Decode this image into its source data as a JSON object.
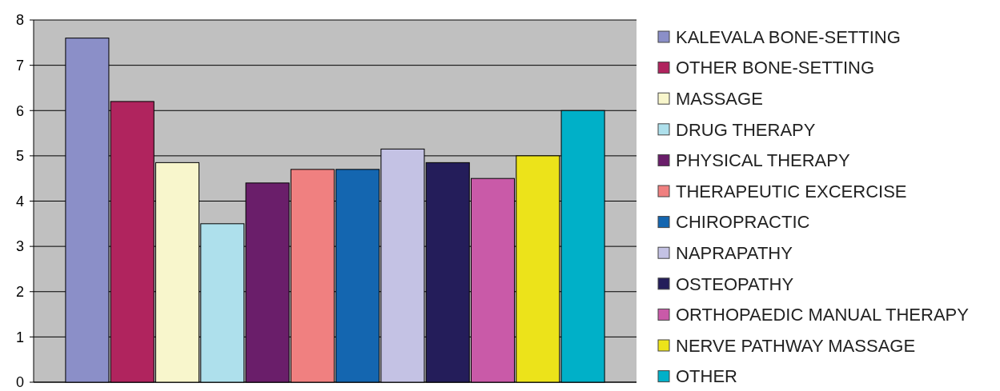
{
  "chart_data": {
    "type": "bar",
    "categories": [
      null
    ],
    "ylim": [
      0,
      8
    ],
    "yticks": [
      0,
      1,
      2,
      3,
      4,
      5,
      6,
      7,
      8
    ],
    "grid": "y",
    "legend": "right",
    "series": [
      {
        "name": "KALEVALA BONE-SETTING",
        "color": "#8b8fc8",
        "values": [
          7.6
        ]
      },
      {
        "name": "OTHER BONE-SETTING",
        "color": "#b0245e",
        "values": [
          6.2
        ]
      },
      {
        "name": "MASSAGE",
        "color": "#f8f6cc",
        "values": [
          4.85
        ]
      },
      {
        "name": "DRUG THERAPY",
        "color": "#aee0ec",
        "values": [
          3.5
        ]
      },
      {
        "name": "PHYSICAL THERAPY",
        "color": "#6a1e6a",
        "values": [
          4.4
        ]
      },
      {
        "name": "THERAPEUTIC EXCERCISE",
        "color": "#f08080",
        "values": [
          4.7
        ]
      },
      {
        "name": "CHIROPRACTIC",
        "color": "#1466b0",
        "values": [
          4.7
        ]
      },
      {
        "name": "NAPRAPATHY",
        "color": "#c4c2e4",
        "values": [
          5.15
        ]
      },
      {
        "name": "OSTEOPATHY",
        "color": "#241d5a",
        "values": [
          4.85
        ]
      },
      {
        "name": "ORTHOPAEDIC MANUAL THERAPY",
        "color": "#c95aa8",
        "values": [
          4.5
        ]
      },
      {
        "name": "NERVE PATHWAY MASSAGE",
        "color": "#ece31a",
        "values": [
          5.0
        ]
      },
      {
        "name": "OTHER",
        "color": "#00b0c8",
        "values": [
          6.0
        ]
      }
    ]
  }
}
